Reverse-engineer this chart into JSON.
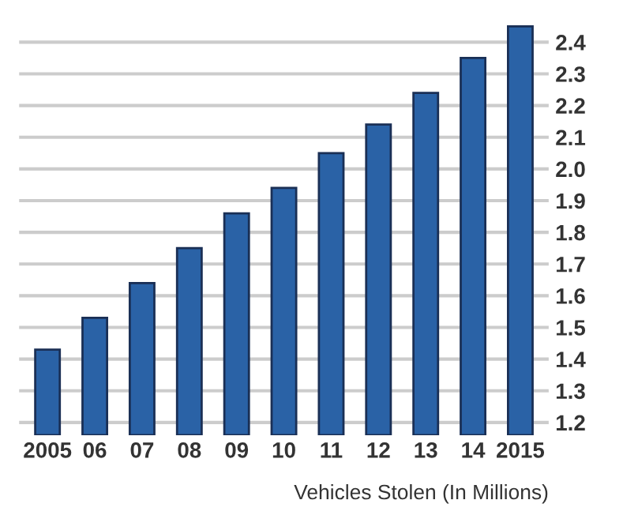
{
  "chart_data": {
    "type": "bar",
    "xlabel": "Vehicles Stolen (In Millions)",
    "categories": [
      "2005",
      "06",
      "07",
      "08",
      "09",
      "10",
      "11",
      "12",
      "13",
      "14",
      "2015"
    ],
    "values": [
      1.43,
      1.53,
      1.64,
      1.75,
      1.86,
      1.94,
      2.05,
      2.14,
      2.24,
      2.35,
      2.45
    ],
    "color": "#2a62a6",
    "ylim": [
      1.16,
      2.46
    ],
    "yticks": [
      1.2,
      1.3,
      1.4,
      1.5,
      1.6,
      1.7,
      1.8,
      1.9,
      {
        "value": 2.0,
        "label": "2.0"
      },
      2.1,
      2.2,
      2.3,
      2.4
    ],
    "grid": "y"
  }
}
